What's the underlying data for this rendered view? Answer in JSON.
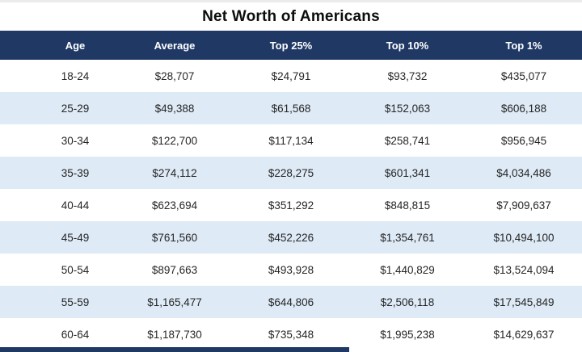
{
  "title": "Net Worth of Americans",
  "table": {
    "columns": [
      "Age",
      "Average",
      "Top 25%",
      "Top 10%",
      "Top 1%"
    ],
    "rows": [
      [
        "18-24",
        "$28,707",
        "$24,791",
        "$93,732",
        "$435,077"
      ],
      [
        "25-29",
        "$49,388",
        "$61,568",
        "$152,063",
        "$606,188"
      ],
      [
        "30-34",
        "$122,700",
        "$117,134",
        "$258,741",
        "$956,945"
      ],
      [
        "35-39",
        "$274,112",
        "$228,275",
        "$601,341",
        "$4,034,486"
      ],
      [
        "40-44",
        "$623,694",
        "$351,292",
        "$848,815",
        "$7,909,637"
      ],
      [
        "45-49",
        "$761,560",
        "$452,226",
        "$1,354,761",
        "$10,494,100"
      ],
      [
        "50-54",
        "$897,663",
        "$493,928",
        "$1,440,829",
        "$13,524,094"
      ],
      [
        "55-59",
        "$1,165,477",
        "$644,806",
        "$2,506,118",
        "$17,545,849"
      ],
      [
        "60-64",
        "$1,187,730",
        "$735,348",
        "$1,995,238",
        "$14,629,637"
      ]
    ]
  },
  "colors": {
    "header_bg": "#1F3864",
    "row_alt_bg": "#DEEAF6",
    "row_bg": "#FFFFFF",
    "header_text": "#FFFFFF",
    "cell_text": "#262626"
  },
  "chart_data": {
    "type": "table",
    "title": "Net Worth of Americans",
    "columns": [
      "Age",
      "Average",
      "Top 25%",
      "Top 10%",
      "Top 1%"
    ],
    "categories": [
      "18-24",
      "25-29",
      "30-34",
      "35-39",
      "40-44",
      "45-49",
      "50-54",
      "55-59",
      "60-64"
    ],
    "series": [
      {
        "name": "Average",
        "values": [
          28707,
          49388,
          122700,
          274112,
          623694,
          761560,
          897663,
          1165477,
          1187730
        ]
      },
      {
        "name": "Top 25%",
        "values": [
          24791,
          61568,
          117134,
          228275,
          351292,
          452226,
          493928,
          644806,
          735348
        ]
      },
      {
        "name": "Top 10%",
        "values": [
          93732,
          152063,
          258741,
          601341,
          848815,
          1354761,
          1440829,
          2506118,
          1995238
        ]
      },
      {
        "name": "Top 1%",
        "values": [
          435077,
          606188,
          956945,
          4034486,
          7909637,
          10494100,
          13524094,
          17545849,
          14629637
        ]
      }
    ],
    "layout": {
      "grid": false,
      "legend": "none",
      "header_row": true,
      "alternating_row_shading": true
    }
  }
}
